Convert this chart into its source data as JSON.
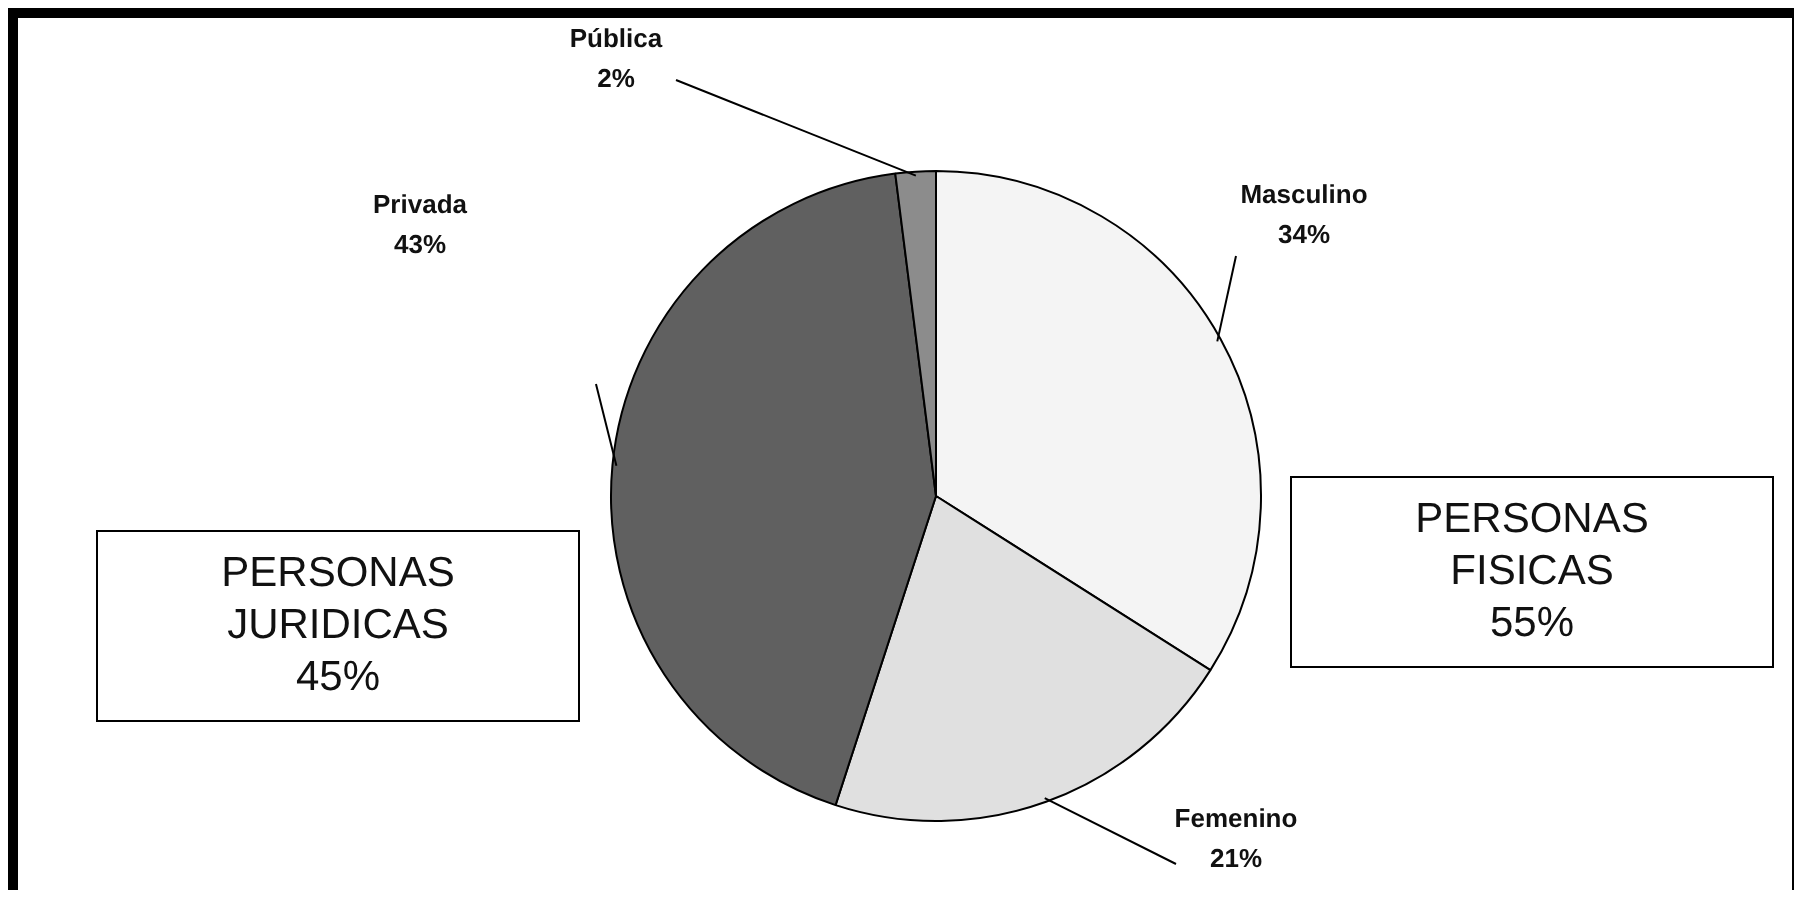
{
  "chart_data": {
    "type": "pie",
    "categories": [
      "Masculino",
      "Femenino",
      "Privada",
      "Pública"
    ],
    "values": [
      34,
      21,
      43,
      2
    ],
    "value_labels": [
      "34%",
      "21%",
      "43%",
      "2%"
    ],
    "colors": [
      "#f4f4f4",
      "#e0e0e0",
      "#606060",
      "#8c8c8c"
    ],
    "annotations": [
      "PERSONAS\nFISICAS\n55%",
      "PERSONAS\nJURIDICAS\n45%"
    ],
    "legend": false
  }
}
